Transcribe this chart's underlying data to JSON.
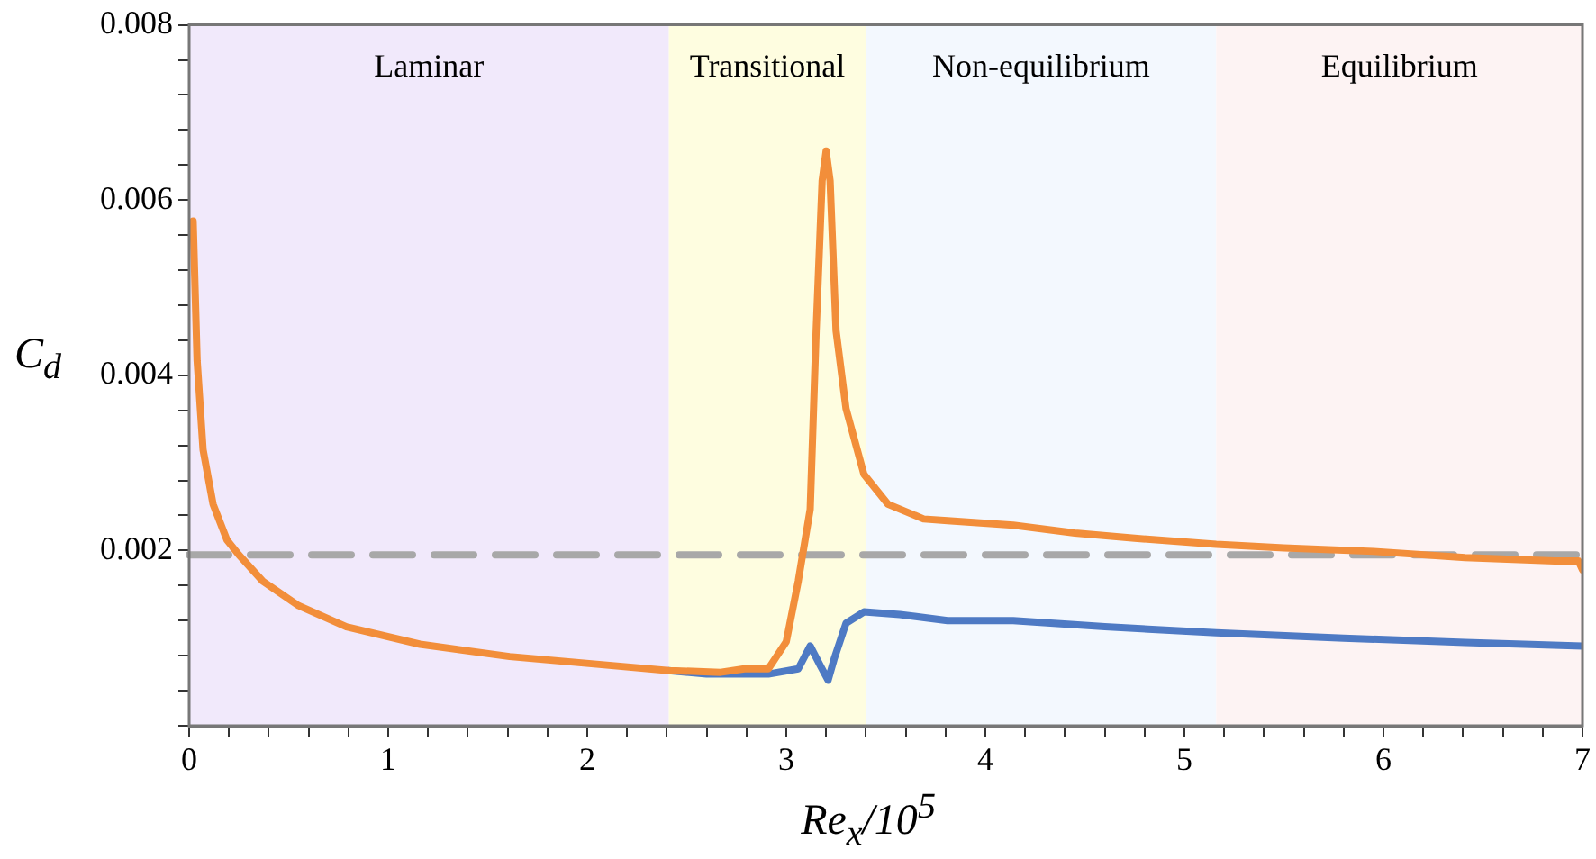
{
  "chart_data": {
    "type": "line",
    "xlabel": "Re$_{x}$/10$^{5}$",
    "ylabel": "C$_{d}$",
    "xlim": [
      0,
      7
    ],
    "ylim": [
      0,
      0.008
    ],
    "xticks": [
      0,
      {
        "value": 0.2,
        "label": null
      },
      {
        "value": 0.4,
        "label": null
      },
      {
        "value": 0.6,
        "label": null
      },
      {
        "value": 0.8,
        "label": null
      },
      1,
      {
        "value": 1.2,
        "label": null
      },
      {
        "value": 1.4,
        "label": null
      },
      {
        "value": 1.6,
        "label": null
      },
      {
        "value": 1.8,
        "label": null
      },
      2,
      {
        "value": 2.2,
        "label": null
      },
      {
        "value": 2.4,
        "label": null
      },
      {
        "value": 2.6,
        "label": null
      },
      {
        "value": 2.8,
        "label": null
      },
      3,
      {
        "value": 3.2,
        "label": null
      },
      {
        "value": 3.4,
        "label": null
      },
      {
        "value": 3.6,
        "label": null
      },
      {
        "value": 3.8,
        "label": null
      },
      4,
      {
        "value": 4.2,
        "label": null
      },
      {
        "value": 4.4,
        "label": null
      },
      {
        "value": 4.6,
        "label": null
      },
      {
        "value": 4.8,
        "label": null
      },
      5,
      {
        "value": 5.2,
        "label": null
      },
      {
        "value": 5.4,
        "label": null
      },
      {
        "value": 5.6,
        "label": null
      },
      {
        "value": 5.8,
        "label": null
      },
      6,
      {
        "value": 6.2,
        "label": null
      },
      {
        "value": 6.4,
        "label": null
      },
      {
        "value": 6.6,
        "label": null
      },
      {
        "value": 6.8,
        "label": null
      },
      7
    ],
    "yticks": [
      {
        "value": 0,
        "label": null
      },
      {
        "value": 0.0004,
        "label": null
      },
      {
        "value": 0.0008,
        "label": null
      },
      {
        "value": 0.0012,
        "label": null
      },
      {
        "value": 0.0016,
        "label": null
      },
      0.002,
      {
        "value": 0.0024,
        "label": null
      },
      {
        "value": 0.0028,
        "label": null
      },
      {
        "value": 0.0032,
        "label": null
      },
      {
        "value": 0.0036,
        "label": null
      },
      0.004,
      {
        "value": 0.0044,
        "label": null
      },
      {
        "value": 0.0048,
        "label": null
      },
      {
        "value": 0.0052,
        "label": null
      },
      {
        "value": 0.0056,
        "label": null
      },
      0.006,
      {
        "value": 0.0064,
        "label": null
      },
      {
        "value": 0.0068,
        "label": null
      },
      {
        "value": 0.0072,
        "label": null
      },
      {
        "value": 0.0076,
        "label": null
      },
      0.008
    ],
    "grid": false,
    "legend": false,
    "marker": "none",
    "bands": [
      {
        "axis": "x",
        "from": 0,
        "to": 2.41,
        "label": "Laminar",
        "color": "#f1e9fb"
      },
      {
        "axis": "x",
        "from": 2.41,
        "to": 3.4,
        "label": "Transitional",
        "color": "#fefde0"
      },
      {
        "axis": "x",
        "from": 3.4,
        "to": 5.16,
        "label": "Non-equilibrium",
        "color": "#f3f8fe"
      },
      {
        "axis": "x",
        "from": 5.16,
        "to": 7,
        "label": "Equilibrium",
        "color": "#fdf3f3"
      }
    ],
    "ref_lines": [
      {
        "axis": "y",
        "value": 0.00195,
        "color": "#a8a8a8",
        "line_style": "dashed"
      }
    ],
    "series": [
      {
        "color": "#4e7ac4",
        "line_style": "solid",
        "x": [
          2.41,
          2.6,
          2.91,
          3.06,
          3.12,
          3.17,
          3.21,
          3.24,
          3.3,
          3.39,
          3.57,
          3.81,
          4.14,
          4.6,
          5.16,
          5.8,
          6.41,
          7.0
        ],
        "values": [
          0.00063,
          0.00059,
          0.00059,
          0.00065,
          0.00091,
          0.00069,
          0.00052,
          0.00076,
          0.00117,
          0.0013,
          0.00127,
          0.0012,
          0.0012,
          0.00113,
          0.00106,
          0.001,
          0.00095,
          0.00091
        ]
      },
      {
        "color": "#f28e3a",
        "line_style": "solid",
        "x": [
          0.02,
          0.04,
          0.07,
          0.12,
          0.19,
          0.25,
          0.37,
          0.55,
          0.79,
          1.16,
          1.61,
          2.06,
          2.41,
          2.67,
          2.79,
          2.88,
          2.91,
          3.0,
          3.06,
          3.12,
          3.15,
          3.18,
          3.2,
          3.22,
          3.25,
          3.3,
          3.39,
          3.51,
          3.69,
          3.81,
          4.14,
          4.45,
          4.75,
          5.16,
          5.5,
          5.95,
          6.41,
          6.86,
          6.98,
          7.0
        ],
        "values": [
          0.00576,
          0.00417,
          0.00315,
          0.00253,
          0.00212,
          0.00195,
          0.00165,
          0.00137,
          0.00113,
          0.00093,
          0.00079,
          0.0007,
          0.00063,
          0.00061,
          0.00065,
          0.00065,
          0.00065,
          0.00096,
          0.00165,
          0.00247,
          0.00451,
          0.00622,
          0.00656,
          0.00622,
          0.00451,
          0.00362,
          0.00287,
          0.00253,
          0.00236,
          0.00234,
          0.00229,
          0.0022,
          0.00214,
          0.00207,
          0.00203,
          0.00199,
          0.00192,
          0.00188,
          0.00188,
          0.00178
        ]
      }
    ]
  }
}
